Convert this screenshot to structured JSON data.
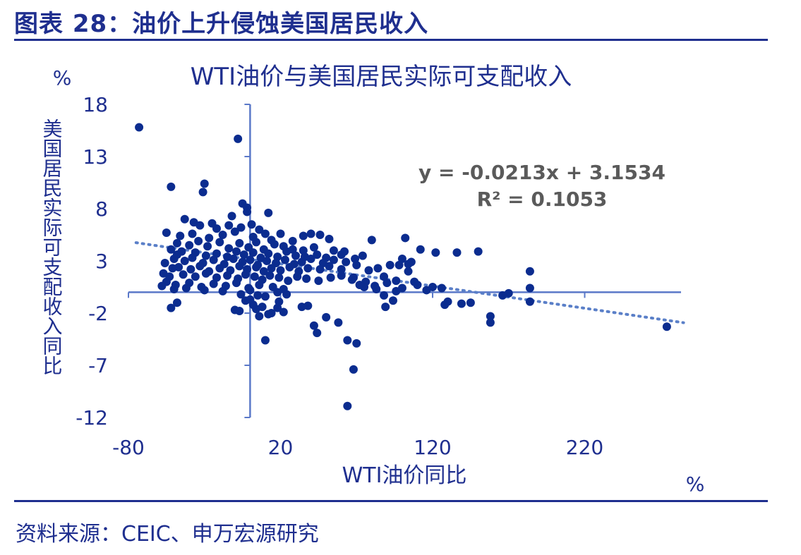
{
  "figure_title": "图表 28：油价上升侵蚀美国居民收入",
  "source": "资料来源：CEIC、申万宏源研究",
  "colors": {
    "text": "#1f2f8f",
    "points": "#0b2c8f",
    "axis": "#5a78c8",
    "trend": "#5a7fc8",
    "equation": "#5a5a5a"
  },
  "chart_data": {
    "type": "scatter",
    "title": "WTI油价与美国居民实际可支配收入",
    "xlabel": "WTI油价同比",
    "ylabel": "美国居民实际可支配收入同比",
    "x_unit": "%",
    "y_unit": "%",
    "xlim": [
      -80,
      290
    ],
    "ylim": [
      -12,
      18
    ],
    "x_ticks": [
      "-80",
      "20",
      "120",
      "220"
    ],
    "y_ticks": [
      "18",
      "13",
      "8",
      "3",
      "-2",
      "-7",
      "-12"
    ],
    "trendline": {
      "slope": -0.0213,
      "intercept": 3.1534,
      "x_range": [
        -75,
        285
      ]
    },
    "equation": "y = -0.0213x + 3.1534",
    "r_squared": "R² = 0.1053",
    "points": [
      [
        -73,
        15.8
      ],
      [
        -8,
        14.7
      ],
      [
        -52,
        10.1
      ],
      [
        -30,
        10.4
      ],
      [
        -31,
        9.6
      ],
      [
        -5,
        8.5
      ],
      [
        -2,
        7.7
      ],
      [
        -12,
        7.3
      ],
      [
        12,
        7.6
      ],
      [
        -2,
        8.1
      ],
      [
        -43,
        7.0
      ],
      [
        -37,
        6.7
      ],
      [
        -33,
        6.4
      ],
      [
        -25,
        6.6
      ],
      [
        -22,
        6.1
      ],
      [
        -14,
        6.4
      ],
      [
        -6,
        6.2
      ],
      [
        1,
        6.5
      ],
      [
        6,
        6.0
      ],
      [
        -55,
        5.7
      ],
      [
        -46,
        5.4
      ],
      [
        -38,
        5.6
      ],
      [
        -27,
        5.2
      ],
      [
        -18,
        5.5
      ],
      [
        -10,
        5.8
      ],
      [
        2,
        5.3
      ],
      [
        10,
        5.6
      ],
      [
        14,
        5.0
      ],
      [
        -48,
        4.7
      ],
      [
        -40,
        4.5
      ],
      [
        -34,
        4.9
      ],
      [
        -28,
        4.4
      ],
      [
        -20,
        4.8
      ],
      [
        -14,
        4.2
      ],
      [
        -7,
        4.7
      ],
      [
        -1,
        4.3
      ],
      [
        4,
        4.8
      ],
      [
        9,
        4.1
      ],
      [
        16,
        4.6
      ],
      [
        22,
        4.4
      ],
      [
        28,
        4.1
      ],
      [
        35,
        4.0
      ],
      [
        42,
        4.3
      ],
      [
        -52,
        4.1
      ],
      [
        -45,
        3.9
      ],
      [
        -36,
        3.8
      ],
      [
        -29,
        3.5
      ],
      [
        -22,
        3.7
      ],
      [
        -15,
        3.4
      ],
      [
        -9,
        3.9
      ],
      [
        -4,
        3.6
      ],
      [
        2,
        3.8
      ],
      [
        7,
        3.3
      ],
      [
        12,
        3.7
      ],
      [
        18,
        3.4
      ],
      [
        24,
        3.9
      ],
      [
        30,
        3.5
      ],
      [
        36,
        3.4
      ],
      [
        44,
        3.6
      ],
      [
        50,
        3.3
      ],
      [
        -50,
        3.2
      ],
      [
        -43,
        3.0
      ],
      [
        -38,
        3.3
      ],
      [
        -31,
        2.8
      ],
      [
        -24,
        3.1
      ],
      [
        -17,
        2.7
      ],
      [
        -11,
        3.2
      ],
      [
        -5,
        2.9
      ],
      [
        0,
        3.1
      ],
      [
        5,
        2.6
      ],
      [
        11,
        3.0
      ],
      [
        17,
        2.8
      ],
      [
        23,
        3.1
      ],
      [
        29,
        2.7
      ],
      [
        34,
        2.9
      ],
      [
        40,
        3.2
      ],
      [
        48,
        2.8
      ],
      [
        55,
        3.1
      ],
      [
        -47,
        2.4
      ],
      [
        -39,
        2.2
      ],
      [
        -33,
        2.5
      ],
      [
        -27,
        2.0
      ],
      [
        -20,
        2.3
      ],
      [
        -13,
        2.1
      ],
      [
        -7,
        2.5
      ],
      [
        -2,
        2.2
      ],
      [
        4,
        2.4
      ],
      [
        9,
        2.0
      ],
      [
        14,
        2.3
      ],
      [
        20,
        2.1
      ],
      [
        26,
        2.4
      ],
      [
        32,
        2.0
      ],
      [
        38,
        2.3
      ],
      [
        46,
        2.2
      ],
      [
        52,
        2.5
      ],
      [
        60,
        2.2
      ],
      [
        -44,
        1.7
      ],
      [
        -36,
        1.5
      ],
      [
        -29,
        1.8
      ],
      [
        -22,
        1.4
      ],
      [
        -15,
        1.6
      ],
      [
        -8,
        1.3
      ],
      [
        -3,
        1.7
      ],
      [
        3,
        1.5
      ],
      [
        8,
        1.2
      ],
      [
        13,
        1.6
      ],
      [
        19,
        1.4
      ],
      [
        25,
        1.1
      ],
      [
        31,
        1.5
      ],
      [
        37,
        1.3
      ],
      [
        45,
        1.1
      ],
      [
        53,
        1.4
      ],
      [
        60,
        1.6
      ],
      [
        67,
        1.2
      ],
      [
        -55,
        1.0
      ],
      [
        -49,
        0.7
      ],
      [
        -40,
        0.9
      ],
      [
        -32,
        0.5
      ],
      [
        -24,
        0.8
      ],
      [
        -16,
        0.6
      ],
      [
        -9,
        0.9
      ],
      [
        -1,
        0.4
      ],
      [
        6,
        0.7
      ],
      [
        15,
        0.5
      ],
      [
        22,
        0.3
      ],
      [
        -58,
        0.6
      ],
      [
        -50,
        0.3
      ],
      [
        -42,
        0.4
      ],
      [
        -30,
        0.2
      ],
      [
        -18,
        0.1
      ],
      [
        -6,
        -0.2
      ],
      [
        -57,
        1.8
      ],
      [
        -53,
        1.5
      ],
      [
        -56,
        2.8
      ],
      [
        -48,
        3.6
      ],
      [
        -51,
        2.3
      ],
      [
        0,
        0.2
      ],
      [
        10,
        -0.4
      ],
      [
        18,
        0.0
      ],
      [
        24,
        -0.2
      ],
      [
        40,
        5.6
      ],
      [
        46,
        5.5
      ],
      [
        52,
        5.1
      ],
      [
        35,
        5.4
      ],
      [
        28,
        4.9
      ],
      [
        20,
        5.6
      ],
      [
        55,
        4.0
      ],
      [
        60,
        3.6
      ],
      [
        63,
        2.9
      ],
      [
        70,
        2.6
      ],
      [
        74,
        3.5
      ],
      [
        78,
        2.1
      ],
      [
        68,
        1.4
      ],
      [
        84,
        2.3
      ],
      [
        88,
        1.5
      ],
      [
        92,
        2.6
      ],
      [
        96,
        1.1
      ],
      [
        100,
        3.2
      ],
      [
        104,
        2.0
      ],
      [
        108,
        1.0
      ],
      [
        76,
        1.0
      ],
      [
        82,
        0.6
      ],
      [
        90,
        0.9
      ],
      [
        100,
        0.4
      ],
      [
        110,
        0.7
      ],
      [
        116,
        0.2
      ],
      [
        120,
        0.5
      ],
      [
        126,
        0.4
      ],
      [
        69,
        3.2
      ],
      [
        62,
        3.9
      ],
      [
        80,
        5.0
      ],
      [
        102,
        5.2
      ],
      [
        106,
        2.9
      ],
      [
        112,
        4.1
      ],
      [
        122,
        3.8
      ],
      [
        136,
        3.8
      ],
      [
        150,
        3.9
      ],
      [
        98,
        2.6
      ],
      [
        104,
        2.7
      ],
      [
        96,
        0.1
      ],
      [
        75,
        0.5
      ],
      [
        83,
        0.3
      ],
      [
        88,
        -0.3
      ],
      [
        128,
        -1.2
      ],
      [
        139,
        -1.1
      ],
      [
        145,
        -1.0
      ],
      [
        158,
        -2.3
      ],
      [
        158,
        -2.9
      ],
      [
        170,
        -0.1
      ],
      [
        184,
        2.0
      ],
      [
        184,
        0.4
      ],
      [
        184,
        -0.9
      ],
      [
        274,
        -3.3
      ],
      [
        -52,
        -1.5
      ],
      [
        -48,
        -1.0
      ],
      [
        -10,
        -1.7
      ],
      [
        -7,
        -1.8
      ],
      [
        4,
        -1.6
      ],
      [
        8,
        -1.4
      ],
      [
        14,
        -2.0
      ],
      [
        18,
        -1.5
      ],
      [
        22,
        -1.9
      ],
      [
        2,
        -1.2
      ],
      [
        -3,
        -0.8
      ],
      [
        5,
        -0.3
      ],
      [
        6,
        -2.3
      ],
      [
        12,
        -2.1
      ],
      [
        0,
        -0.7
      ],
      [
        19,
        -0.9
      ],
      [
        34,
        -1.4
      ],
      [
        38,
        -1.3
      ],
      [
        42,
        -3.2
      ],
      [
        44,
        -3.9
      ],
      [
        50,
        -2.4
      ],
      [
        58,
        -2.9
      ],
      [
        64,
        -4.6
      ],
      [
        70,
        -4.9
      ],
      [
        10,
        -4.6
      ],
      [
        68,
        -7.4
      ],
      [
        64,
        -10.9
      ],
      [
        72,
        0.7
      ],
      [
        130,
        -0.9
      ],
      [
        166,
        -0.3
      ],
      [
        89,
        -1.4
      ],
      [
        94,
        -0.8
      ]
    ]
  }
}
